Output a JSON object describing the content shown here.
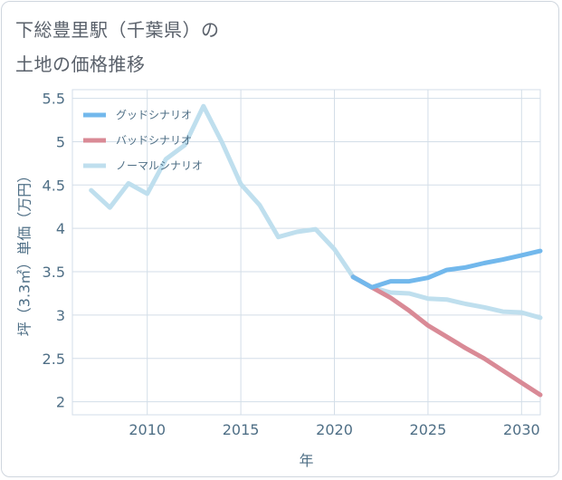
{
  "title": {
    "line1": "下総豊里駅（千葉県）の",
    "line2": "土地の価格推移"
  },
  "colors": {
    "good": "#72b8ec",
    "bad": "#d98a96",
    "normal": "#bfdfee",
    "grid": "#d3dee8",
    "axis_text": "#4f6f86"
  },
  "chart_data": {
    "type": "line",
    "title": "下総豊里駅（千葉県）の土地の価格推移",
    "xlabel": "年",
    "ylabel": "坪（3.3㎡）単価（万円）",
    "xlim": [
      2006,
      2031
    ],
    "ylim": [
      1.85,
      5.6
    ],
    "xticks": [
      2010,
      2015,
      2020,
      2025,
      2030
    ],
    "yticks": [
      2,
      2.5,
      3,
      3.5,
      4,
      4.5,
      5,
      5.5
    ],
    "grid": true,
    "legend_position": "top-left",
    "series": [
      {
        "name": "グッドシナリオ",
        "color": "#72b8ec",
        "x": [
          2021,
          2022,
          2023,
          2024,
          2025,
          2026,
          2027,
          2028,
          2029,
          2030,
          2031
        ],
        "y": [
          3.44,
          3.32,
          3.39,
          3.39,
          3.43,
          3.52,
          3.55,
          3.6,
          3.64,
          3.69,
          3.74
        ]
      },
      {
        "name": "バッドシナリオ",
        "color": "#d98a96",
        "x": [
          2021,
          2022,
          2023,
          2024,
          2025,
          2026,
          2027,
          2028,
          2029,
          2030,
          2031
        ],
        "y": [
          3.44,
          3.32,
          3.2,
          3.05,
          2.88,
          2.75,
          2.62,
          2.5,
          2.36,
          2.22,
          2.08
        ]
      },
      {
        "name": "ノーマルシナリオ",
        "color": "#bfdfee",
        "x": [
          2007,
          2008,
          2009,
          2010,
          2011,
          2012,
          2013,
          2014,
          2015,
          2016,
          2017,
          2018,
          2019,
          2020,
          2021,
          2022,
          2023,
          2024,
          2025,
          2026,
          2027,
          2028,
          2029,
          2030,
          2031
        ],
        "y": [
          4.44,
          4.24,
          4.52,
          4.4,
          4.8,
          4.96,
          5.41,
          4.99,
          4.51,
          4.27,
          3.9,
          3.96,
          3.99,
          3.76,
          3.44,
          3.32,
          3.26,
          3.25,
          3.19,
          3.18,
          3.13,
          3.09,
          3.04,
          3.03,
          2.97
        ]
      }
    ]
  }
}
